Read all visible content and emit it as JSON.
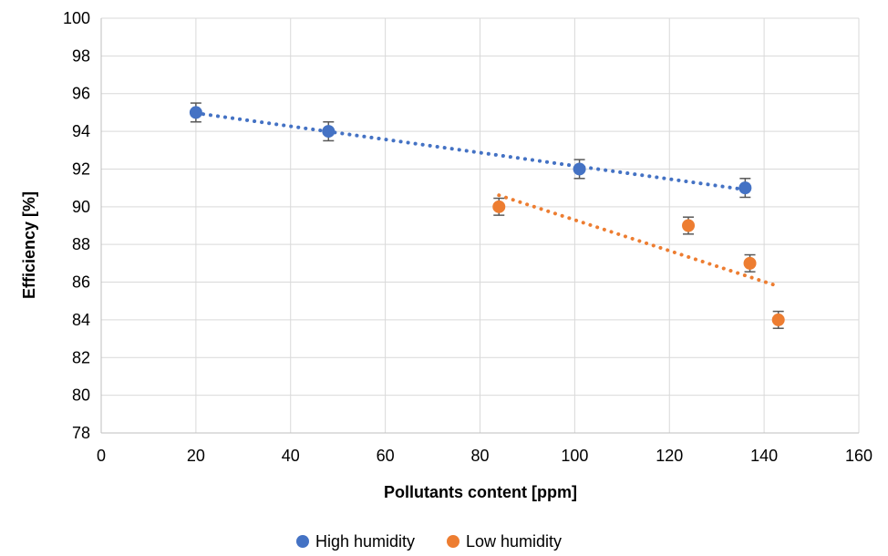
{
  "chart_data": {
    "type": "scatter",
    "title": "",
    "xlabel": "Pollutants content [ppm]",
    "ylabel": "Efficiency [%]",
    "xlim": [
      0,
      160
    ],
    "ylim": [
      78,
      100
    ],
    "xticks": [
      0,
      20,
      40,
      60,
      80,
      100,
      120,
      140,
      160
    ],
    "yticks": [
      78,
      80,
      82,
      84,
      86,
      88,
      90,
      92,
      94,
      96,
      98,
      100
    ],
    "grid": true,
    "legend_position": "bottom",
    "series": [
      {
        "name": "High humidity",
        "color": "#4472C4",
        "x": [
          20,
          48,
          101,
          136
        ],
        "y": [
          95,
          94,
          92,
          91
        ],
        "error": 0.5,
        "trendline": "linear"
      },
      {
        "name": "Low humidity",
        "color": "#ED7D31",
        "x": [
          84,
          124,
          137,
          143
        ],
        "y": [
          90,
          89,
          87,
          84
        ],
        "error": 0.45,
        "trendline": "linear"
      }
    ]
  }
}
